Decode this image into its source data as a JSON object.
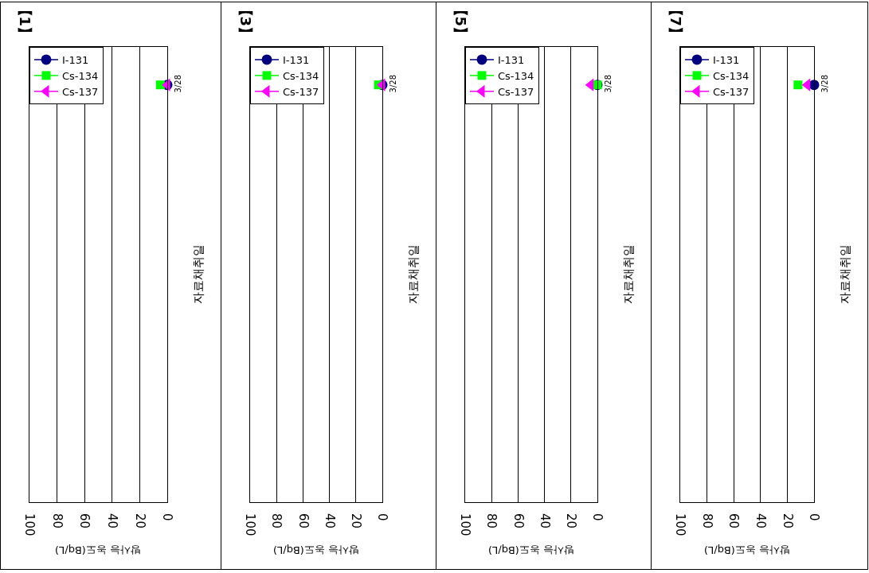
{
  "chart_data": [
    {
      "type": "line",
      "orientation": "horizontal",
      "title": "【1】",
      "xlabel": "방사능 농도(Bq/L)",
      "ylabel": "자료채취일",
      "categories": [
        "3/28",
        null,
        null,
        null,
        null,
        null
      ],
      "xlim": [
        100,
        0
      ],
      "xticks": [
        0,
        20,
        40,
        60,
        80,
        100
      ],
      "grid": "x",
      "legend": "top left",
      "series": [
        {
          "name": "I-131",
          "color": "#000080",
          "marker": "circle",
          "values": [
            0,
            null,
            null,
            null,
            null,
            null
          ]
        },
        {
          "name": "Cs-134",
          "color": "#00ff00",
          "marker": "square",
          "values": [
            5,
            null,
            null,
            null,
            null,
            null
          ]
        },
        {
          "name": "Cs-137",
          "color": "#ff00ff",
          "marker": "triangle",
          "values": [
            0,
            null,
            null,
            null,
            null,
            null
          ]
        }
      ]
    },
    {
      "type": "line",
      "orientation": "horizontal",
      "title": "【3】",
      "xlabel": "방사능 농도(Bq/L)",
      "ylabel": "자료채취일",
      "categories": [
        "3/28",
        null,
        null,
        null,
        null,
        null
      ],
      "xlim": [
        100,
        0
      ],
      "xticks": [
        0,
        20,
        40,
        60,
        80,
        100
      ],
      "grid": "x",
      "legend": "top left",
      "series": [
        {
          "name": "I-131",
          "color": "#000080",
          "marker": "circle",
          "values": [
            0,
            null,
            null,
            null,
            null,
            null
          ]
        },
        {
          "name": "Cs-134",
          "color": "#00ff00",
          "marker": "square",
          "values": [
            3,
            null,
            null,
            null,
            null,
            null
          ]
        },
        {
          "name": "Cs-137",
          "color": "#ff00ff",
          "marker": "triangle",
          "values": [
            0,
            null,
            null,
            null,
            null,
            null
          ]
        }
      ]
    },
    {
      "type": "line",
      "orientation": "horizontal",
      "title": "【5】",
      "xlabel": "방사능 농도(Bq/L)",
      "ylabel": "자료채취일",
      "categories": [
        "3/28",
        null,
        null,
        null,
        null,
        null
      ],
      "xlim": [
        100,
        0
      ],
      "xticks": [
        0,
        20,
        40,
        60,
        80,
        100
      ],
      "grid": "x",
      "legend": "top left",
      "series": [
        {
          "name": "I-131",
          "color": "#000080",
          "marker": "circle",
          "values": [
            0,
            null,
            null,
            null,
            null,
            null
          ]
        },
        {
          "name": "Cs-134",
          "color": "#00ff00",
          "marker": "square",
          "values": [
            0,
            null,
            null,
            null,
            null,
            null
          ]
        },
        {
          "name": "Cs-137",
          "color": "#ff00ff",
          "marker": "triangle",
          "values": [
            5,
            null,
            null,
            null,
            null,
            null
          ]
        }
      ]
    },
    {
      "type": "line",
      "orientation": "horizontal",
      "title": "【7】",
      "xlabel": "방사능 농도(Bq/L)",
      "ylabel": "자료채취일",
      "categories": [
        "3/28",
        null,
        null,
        null,
        null,
        null
      ],
      "xlim": [
        100,
        0
      ],
      "xticks": [
        0,
        20,
        40,
        60,
        80,
        100
      ],
      "grid": "x",
      "legend": "top left",
      "series": [
        {
          "name": "I-131",
          "color": "#000080",
          "marker": "circle",
          "values": [
            0,
            null,
            null,
            null,
            null,
            null
          ]
        },
        {
          "name": "Cs-134",
          "color": "#00ff00",
          "marker": "square",
          "values": [
            12,
            null,
            null,
            null,
            null,
            null
          ]
        },
        {
          "name": "Cs-137",
          "color": "#ff00ff",
          "marker": "triangle",
          "values": [
            5,
            null,
            null,
            null,
            null,
            null
          ]
        }
      ]
    }
  ]
}
